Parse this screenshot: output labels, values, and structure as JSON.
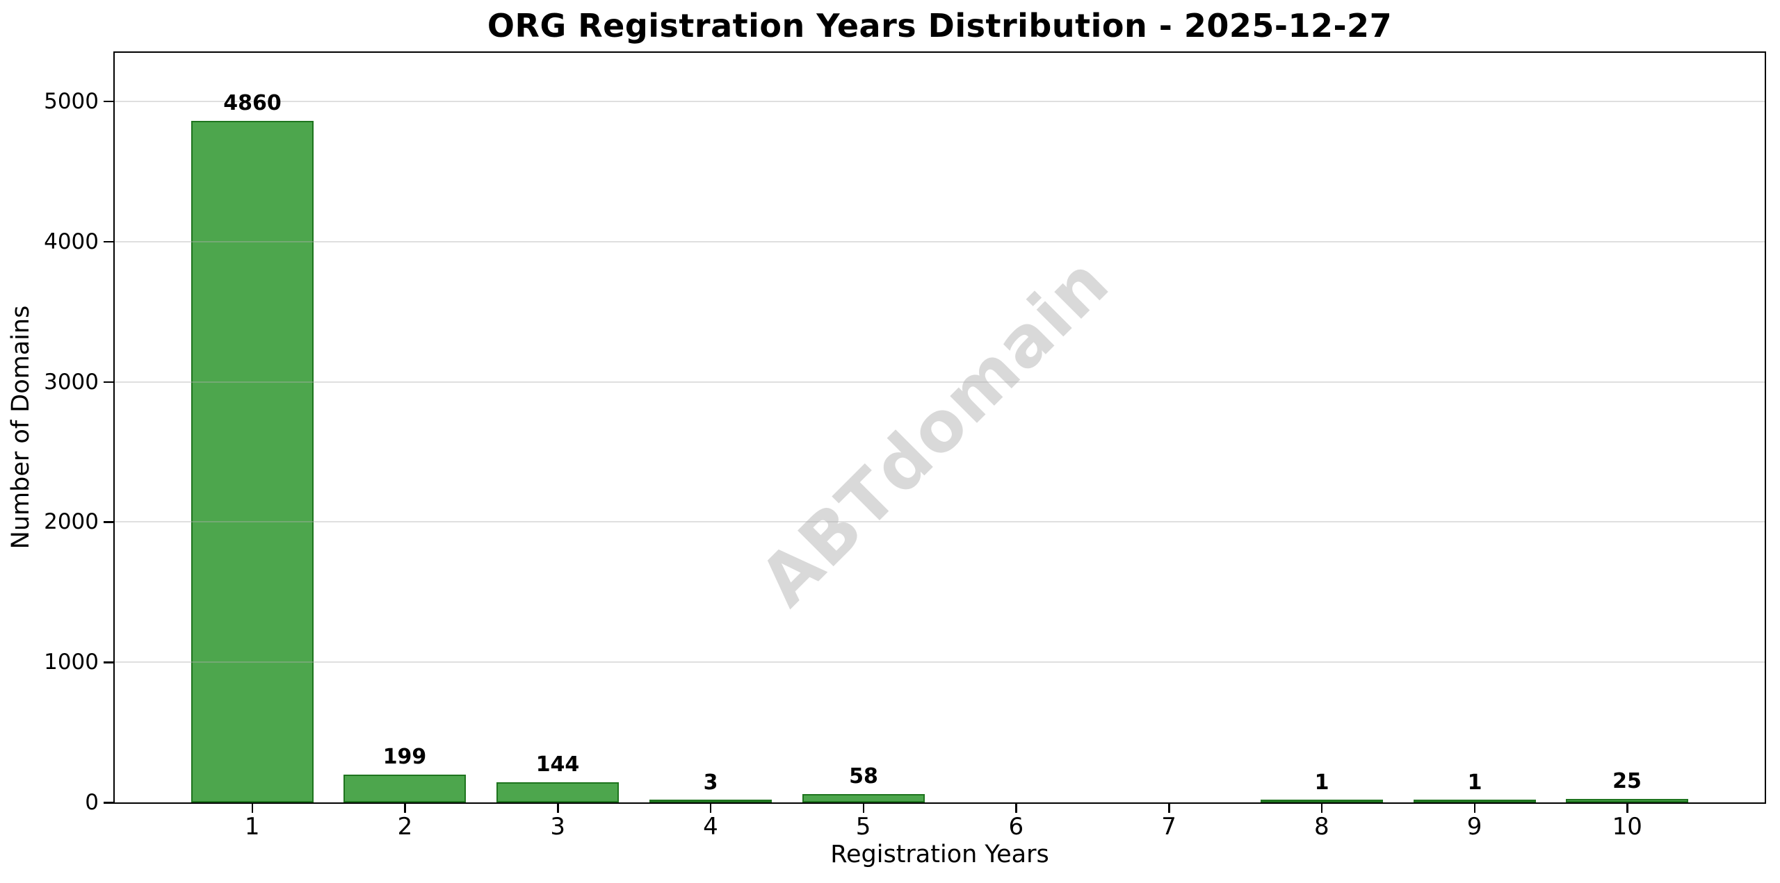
{
  "watermark": {
    "text": "ABTdomain",
    "color": "#D9D9D9"
  },
  "chart_data": {
    "type": "bar",
    "title": "ORG Registration Years Distribution - 2025-12-27",
    "xlabel": "Registration Years",
    "ylabel": "Number of Domains",
    "categories": [
      "1",
      "2",
      "3",
      "4",
      "5",
      "6",
      "7",
      "8",
      "9",
      "10"
    ],
    "values": [
      4860,
      199,
      144,
      3,
      58,
      0,
      0,
      1,
      1,
      25
    ],
    "bar_labels": [
      "4860",
      "199",
      "144",
      "3",
      "58",
      "",
      "",
      "1",
      "1",
      "25"
    ],
    "yticks": [
      0,
      1000,
      2000,
      3000,
      4000,
      5000
    ],
    "ylim": [
      0,
      5346
    ],
    "xlim": [
      0.1,
      10.9
    ],
    "bar_width_units": 0.8,
    "grid": true,
    "legend": null,
    "colors": {
      "bar_fill": "#4DA64D",
      "bar_edge": "#1E741E",
      "grid_rgba": "rgba(176,176,176,0.4)",
      "spine": "#000000",
      "background": "#FFFFFF"
    }
  }
}
